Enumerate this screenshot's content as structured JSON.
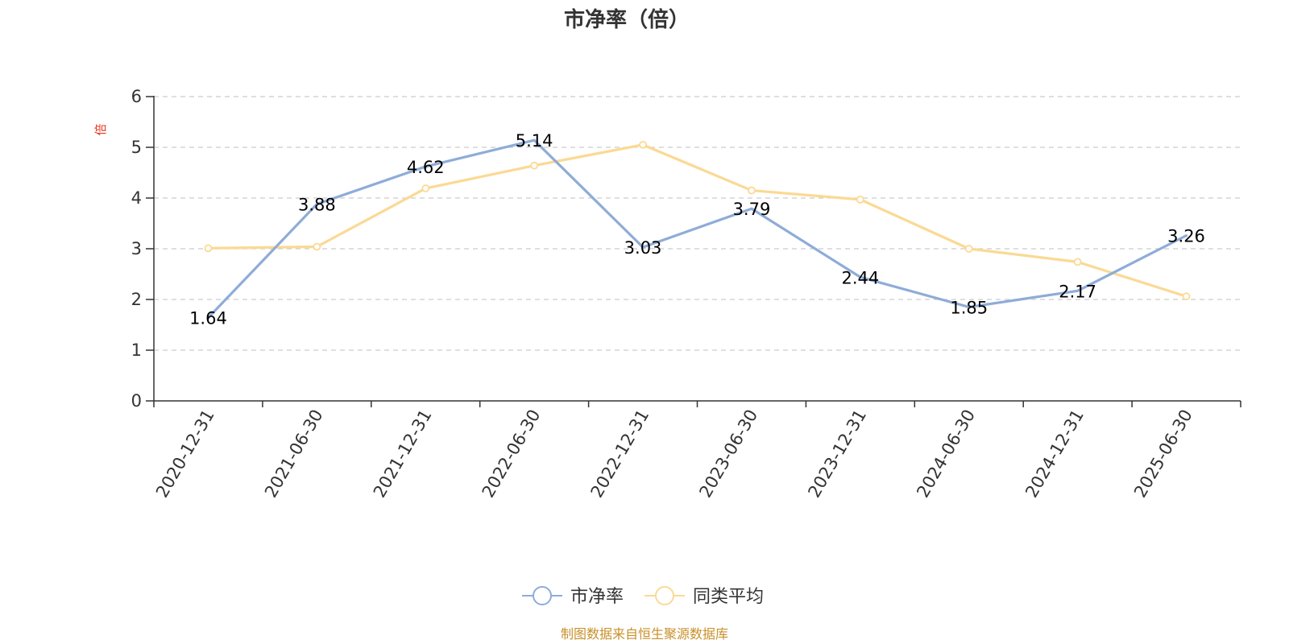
{
  "chart_data": {
    "type": "line",
    "title": "市净率（倍）",
    "ylabel": "倍",
    "ylim": [
      0,
      6
    ],
    "yticks": [
      0,
      1,
      2,
      3,
      4,
      5,
      6
    ],
    "grid": true,
    "legend_position": "bottom",
    "categories": [
      "2020-12-31",
      "2021-06-30",
      "2021-12-31",
      "2022-06-30",
      "2022-12-31",
      "2023-06-30",
      "2023-12-31",
      "2024-06-30",
      "2024-12-31",
      "2025-06-30"
    ],
    "series": [
      {
        "name": "市净率",
        "color": "#8eacd8",
        "values": [
          1.64,
          3.88,
          4.62,
          5.14,
          3.03,
          3.79,
          2.44,
          1.85,
          2.17,
          3.26
        ],
        "labels": [
          "1.64",
          "3.88",
          "4.62",
          "5.14",
          "3.03",
          "3.79",
          "2.44",
          "1.85",
          "2.17",
          "3.26"
        ]
      },
      {
        "name": "同类平均",
        "color": "#fbd994",
        "values": [
          3.01,
          3.04,
          4.19,
          4.64,
          5.05,
          4.15,
          3.97,
          3.0,
          2.74,
          2.06
        ]
      }
    ]
  },
  "source": "制图数据来自恒生聚源数据库",
  "colors": {
    "axis": "#333333",
    "grid": "#cccccc",
    "unit": "#e8341c",
    "source": "#c8902a"
  }
}
